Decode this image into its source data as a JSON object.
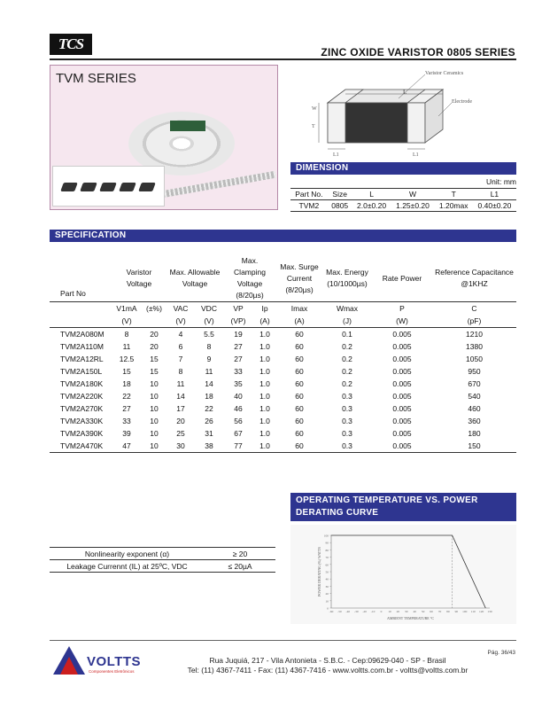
{
  "header": {
    "logo": "TCS",
    "doc_title": "ZINC OXIDE VARISTOR 0805 SERIES"
  },
  "series": {
    "title": "TVM SERIES"
  },
  "diagram": {
    "label_ceramics": "Varistor Ceramics",
    "label_electrode": "Electrode",
    "label_L": "L",
    "label_W": "W",
    "label_T": "T",
    "label_L1": "L1"
  },
  "dimension": {
    "title": "DIMENSION",
    "unit": "Unit: mm",
    "headers": [
      "Part No.",
      "Size",
      "L",
      "W",
      "T",
      "L1"
    ],
    "row": [
      "TVM2",
      "0805",
      "2.0±0.20",
      "1.25±0.20",
      "1.20max",
      "0.40±0.20"
    ]
  },
  "specification": {
    "title": "SPECIFICATION",
    "h_part": "Part No",
    "h_varistor": "Varistor Voltage",
    "h_allowable": "Max. Allowable Voltage",
    "h_clamping": "Max. Clamping Voltage (8/20µs)",
    "h_surge": "Max. Surge Current (8/20µs)",
    "h_energy": "Max. Energy (10/1000µs)",
    "h_rate": "Rate Power",
    "h_cap": "Reference Capacitance @1KHZ",
    "sub": [
      "V1mA",
      "(±%)",
      "VAC",
      "VDC",
      "VP",
      "Ip",
      "Imax",
      "Wmax",
      "P",
      "C"
    ],
    "units": [
      "(V)",
      "",
      "(V)",
      "(V)",
      "(VP)",
      "(A)",
      "(A)",
      "(J)",
      "(W)",
      "(pF)"
    ],
    "rows": [
      [
        "TVM2A080M",
        "8",
        "20",
        "4",
        "5.5",
        "19",
        "1.0",
        "60",
        "0.1",
        "0.005",
        "1210"
      ],
      [
        "TVM2A110M",
        "11",
        "20",
        "6",
        "8",
        "27",
        "1.0",
        "60",
        "0.2",
        "0.005",
        "1380"
      ],
      [
        "TVM2A12RL",
        "12.5",
        "15",
        "7",
        "9",
        "27",
        "1.0",
        "60",
        "0.2",
        "0.005",
        "1050"
      ],
      [
        "TVM2A150L",
        "15",
        "15",
        "8",
        "11",
        "33",
        "1.0",
        "60",
        "0.2",
        "0.005",
        "950"
      ],
      [
        "TVM2A180K",
        "18",
        "10",
        "11",
        "14",
        "35",
        "1.0",
        "60",
        "0.2",
        "0.005",
        "670"
      ],
      [
        "TVM2A220K",
        "22",
        "10",
        "14",
        "18",
        "40",
        "1.0",
        "60",
        "0.3",
        "0.005",
        "540"
      ],
      [
        "TVM2A270K",
        "27",
        "10",
        "17",
        "22",
        "46",
        "1.0",
        "60",
        "0.3",
        "0.005",
        "460"
      ],
      [
        "TVM2A330K",
        "33",
        "10",
        "20",
        "26",
        "56",
        "1.0",
        "60",
        "0.3",
        "0.005",
        "360"
      ],
      [
        "TVM2A390K",
        "39",
        "10",
        "25",
        "31",
        "67",
        "1.0",
        "60",
        "0.3",
        "0.005",
        "180"
      ],
      [
        "TVM2A470K",
        "47",
        "10",
        "30",
        "38",
        "77",
        "1.0",
        "60",
        "0.3",
        "0.005",
        "150"
      ]
    ]
  },
  "properties": [
    {
      "label": "Nonlinearity exponent (α)",
      "value": "≥ 20"
    },
    {
      "label": "Leakage Currennt (IL) at 25ºC, VDC",
      "value": "≤ 20µA"
    }
  ],
  "derating": {
    "title_line1": "OPERATING TEMPERATURE VS. POWER",
    "title_line2": "DERATING CURVE"
  },
  "chart_data": {
    "type": "line",
    "title": "",
    "xlabel": "AMBIENT TEMPERATURE °C",
    "ylabel": "POWER DERATING (%) WATTS",
    "x_ticks": [
      -60,
      -50,
      -40,
      -30,
      -20,
      -10,
      0,
      10,
      20,
      30,
      40,
      50,
      60,
      70,
      80,
      90,
      100,
      110,
      120,
      130
    ],
    "y_ticks": [
      0,
      10,
      20,
      30,
      40,
      50,
      60,
      70,
      80,
      90,
      100
    ],
    "xlim": [
      -60,
      130
    ],
    "ylim": [
      0,
      100
    ],
    "series": [
      {
        "x": [
          -60,
          85,
          125
        ],
        "y": [
          100,
          100,
          0
        ]
      }
    ]
  },
  "footer": {
    "brand": "VOLTTS",
    "brand_sub": "Componentes Eletrônicos",
    "address": "Rua Juquiá, 217  -  Vila Antonieta  -  S.B.C.  -  Cep:09629-040  -  SP - Brasil",
    "contact": "Tel: (11) 4367-7411  -  Fax: (11) 4367-7416  -  www.voltts.com.br  -  voltts@voltts.com.br",
    "page": "Pág. 36/43",
    "accent": "#2e3590",
    "logo_red": "#cc1f1f"
  }
}
